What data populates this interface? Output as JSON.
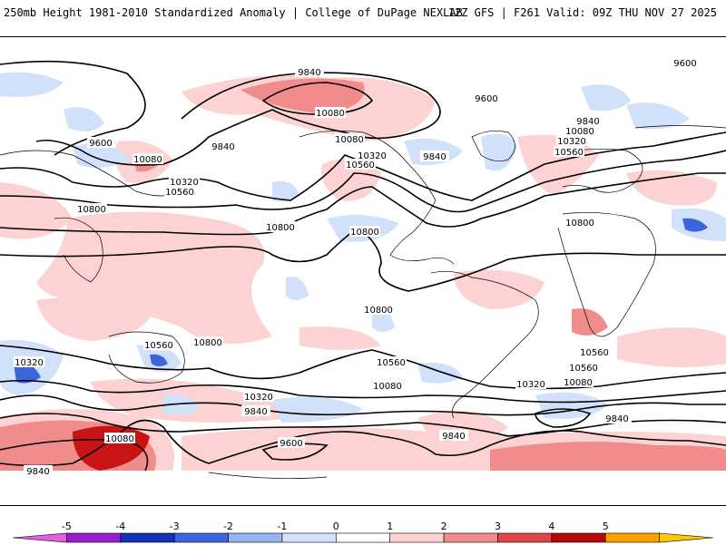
{
  "header": {
    "title": "250mb Height 1981-2010 Standardized Anomaly | College of DuPage NEXLAB",
    "run_info": "12Z GFS | F261 Valid: 09Z THU NOV 27 2025"
  },
  "contour_labels": {
    "l1": "9840",
    "l2": "9600",
    "l3": "10080",
    "l4": "9600",
    "l5": "9840",
    "l6": "9600",
    "l7": "10080",
    "l8": "9840",
    "l9": "10320",
    "l10": "10560",
    "l11": "10080",
    "l12": "10320",
    "l13": "10560",
    "l14": "10800",
    "l15": "10800",
    "l16": "10800",
    "l17": "10080",
    "l18": "10320",
    "l19": "10560",
    "l20": "10800",
    "l21": "10800",
    "l22": "10560",
    "l23": "10800",
    "l24": "10560",
    "l25": "10320",
    "l26": "10080",
    "l27": "10320",
    "l28": "10080",
    "l29": "9840",
    "l30": "10080",
    "l31": "9600",
    "l32": "9840",
    "l33": "9840",
    "l34": "9840",
    "l35": "9840",
    "l36": "10320",
    "l37": "10560",
    "l38": "9600",
    "l39": "10560"
  },
  "colorbar": {
    "labels": [
      "-5",
      "-4",
      "-3",
      "-2",
      "-1",
      "0",
      "1",
      "2",
      "3",
      "4",
      "5"
    ],
    "colors": [
      "#e060e0",
      "#9a1ec8",
      "#1432b4",
      "#3c64dc",
      "#96b4f0",
      "#d2e1fa",
      "#ffffff",
      "#fcd2d2",
      "#f08c8c",
      "#dc4646",
      "#b40a0a",
      "#ffa000",
      "#ffc800"
    ]
  }
}
